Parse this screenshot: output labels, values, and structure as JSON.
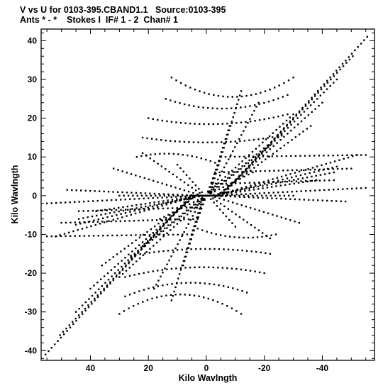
{
  "header": {
    "line1": "V vs U for 0103-395.CBAND1.1   Source:0103-395",
    "line2": "Ants * - *    Stokes I  IF# 1 - 2  Chan# 1"
  },
  "chart_data": {
    "type": "scatter",
    "title": "V vs U for 0103-395.CBAND1.1   Source:0103-395",
    "subtitle": "Ants * - *    Stokes I  IF# 1 - 2  Chan# 1",
    "xlabel": "Kilo Wavlngth",
    "ylabel": "Kilo Wavlngth",
    "xlim": [
      57,
      -58
    ],
    "ylim": [
      -42.5,
      43
    ],
    "x_ticks": [
      40,
      20,
      0,
      -20,
      -40
    ],
    "x_tick_labels": [
      "40",
      "20",
      "0",
      "-20",
      "-40"
    ],
    "y_ticks": [
      40,
      30,
      20,
      10,
      0,
      -10,
      -20,
      -30,
      -40
    ],
    "y_tick_labels": [
      "40",
      "30",
      "20",
      "10",
      "0",
      "-10",
      "-20",
      "-30",
      "-40"
    ],
    "grid": false,
    "point_symmetry": "points (u, v) and (-u, -v) both plotted",
    "tracks": [
      {
        "start": [
          -5.5,
          0.0
        ],
        "end": [
          -55.5,
          41.0
        ]
      },
      {
        "start": [
          -5.0,
          0.0
        ],
        "end": [
          -50.5,
          36.0
        ]
      },
      {
        "start": [
          -4.5,
          0.0
        ],
        "end": [
          -45.0,
          30.0
        ]
      },
      {
        "start": [
          -4.0,
          0.0
        ],
        "end": [
          -40.0,
          24.0
        ]
      },
      {
        "start": [
          -3.5,
          0.0
        ],
        "end": [
          -36.0,
          18.0
        ]
      },
      {
        "start": [
          -3.0,
          0.0
        ],
        "end": [
          -52.0,
          10.5
        ]
      },
      {
        "start": [
          -3.0,
          0.0
        ],
        "end": [
          -45.0,
          7.5
        ]
      },
      {
        "start": [
          -2.5,
          0.0
        ],
        "end": [
          -38.0,
          4.0
        ]
      },
      {
        "start": [
          -2.5,
          0.0
        ],
        "end": [
          -55.0,
          2.0
        ]
      },
      {
        "start": [
          -2.0,
          0.0
        ],
        "end": [
          -30.0,
          0.0
        ]
      },
      {
        "start": [
          -2.0,
          0.0
        ],
        "end": [
          -48.0,
          -1.5
        ]
      },
      {
        "start": [
          -1.0,
          0.0
        ],
        "end": [
          -12.0,
          27.0
        ]
      },
      {
        "start": [
          -1.0,
          0.0
        ],
        "end": [
          -18.0,
          24.0
        ]
      },
      {
        "start": [
          -0.5,
          0.0
        ],
        "end": [
          -8.0,
          18.0
        ]
      },
      {
        "start": [
          -0.5,
          0.0
        ],
        "end": [
          -22.0,
          13.0
        ]
      },
      {
        "start": [
          0.0,
          0.0
        ],
        "end": [
          -5.0,
          10.0
        ]
      },
      {
        "start": [
          0.0,
          0.0
        ],
        "end": [
          -26.0,
          16.0
        ]
      },
      {
        "start": [
          -1.5,
          0.0
        ],
        "end": [
          -32.0,
          -7.0
        ]
      },
      {
        "start": [
          -1.0,
          0.0
        ],
        "end": [
          -22.0,
          -11.0
        ]
      },
      {
        "start": [
          -0.5,
          0.0
        ],
        "end": [
          -10.0,
          -8.0
        ]
      },
      {
        "start": [
          -1.0,
          0.0
        ],
        "end": [
          -44.0,
          6.0
        ]
      },
      {
        "start": [
          0.5,
          0.0
        ],
        "end": [
          -30.0,
          21.0
        ]
      },
      {
        "start": [
          0.0,
          0.0
        ],
        "end": [
          -16.0,
          6.0
        ]
      }
    ],
    "arcs": [
      {
        "start": [
          12.0,
          30.5
        ],
        "end": [
          -30.0,
          30.5
        ],
        "sag": -5.0
      },
      {
        "start": [
          14.0,
          25.0
        ],
        "end": [
          -28.0,
          26.0
        ],
        "sag": -3.0
      },
      {
        "start": [
          20.0,
          20.0
        ],
        "end": [
          -28.0,
          21.0
        ],
        "sag": -2.0
      },
      {
        "start": [
          22.0,
          15.0
        ],
        "end": [
          -26.0,
          15.5
        ],
        "sag": -1.5
      },
      {
        "start": [
          -5.0,
          10.0
        ],
        "end": [
          -55.0,
          10.5
        ],
        "sag": 0.0
      },
      {
        "start": [
          -3.0,
          6.0
        ],
        "end": [
          -50.0,
          7.0
        ],
        "sag": 0.0
      },
      {
        "start": [
          24.0,
          10.0
        ],
        "end": [
          -3.0,
          8.5
        ],
        "sag": 1.5
      },
      {
        "start": [
          -2.0,
          3.0
        ],
        "end": [
          -44.0,
          4.0
        ],
        "sag": 0.0
      }
    ]
  }
}
